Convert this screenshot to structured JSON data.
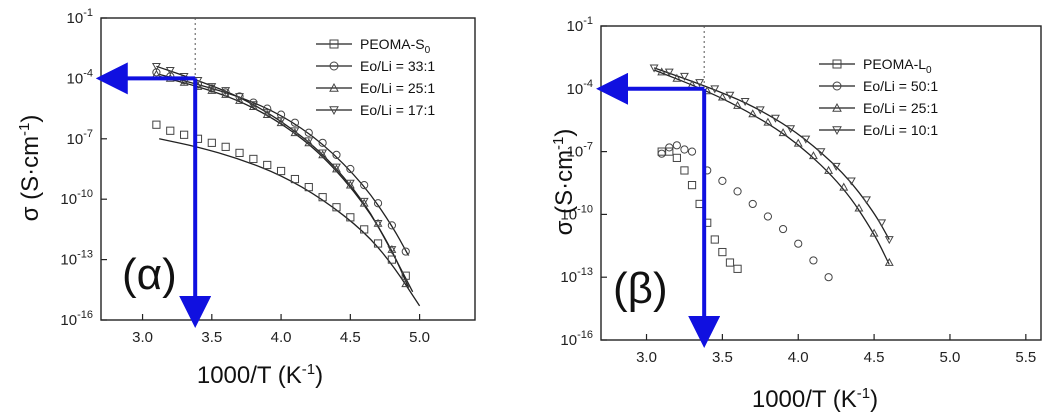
{
  "chart_data": [
    {
      "type": "scatter",
      "panel_label": "(α)",
      "xlabel": "1000/T (K",
      "xlabel_sup": "-1",
      "xlabel_tail": ")",
      "ylabel": "σ (S·cm",
      "ylabel_sup": "-1",
      "ylabel_tail": ")",
      "xlim": [
        2.7,
        5.4
      ],
      "ylim_exp": [
        -16,
        -1
      ],
      "y_scale": "log",
      "x_ticks": [
        3.0,
        3.5,
        4.0,
        4.5,
        5.0
      ],
      "x_tick_labels": [
        "3.0",
        "3.5",
        "4.0",
        "4.5",
        "5.0"
      ],
      "y_ticks_exp": [
        -16,
        -13,
        -10,
        -7,
        -4,
        -1
      ],
      "legend_position": "top-right",
      "annotations": {
        "dotted_x": 3.38,
        "arrow_vertical": {
          "x": 3.38,
          "from_exp": -4,
          "to_exp": -16
        },
        "arrow_horizontal": {
          "y_exp": -4,
          "from_x": 3.38,
          "to_x": 2.72
        }
      },
      "series": [
        {
          "name": "PEOMA-S",
          "name_sub": "0",
          "marker": "square",
          "x": [
            3.1,
            3.2,
            3.3,
            3.4,
            3.5,
            3.6,
            3.7,
            3.8,
            3.9,
            4.0,
            4.1,
            4.2,
            4.3,
            4.4,
            4.5,
            4.6,
            4.7,
            4.8,
            4.9
          ],
          "y_exp": [
            -6.3,
            -6.6,
            -6.8,
            -7.0,
            -7.2,
            -7.4,
            -7.7,
            -8.0,
            -8.3,
            -8.6,
            -9.0,
            -9.4,
            -9.9,
            -10.4,
            -10.9,
            -11.5,
            -12.2,
            -13.0,
            -13.8
          ],
          "fit_x": [
            3.12,
            3.4,
            3.7,
            4.0,
            4.3,
            4.6,
            4.8,
            5.0
          ],
          "fit_y_exp": [
            -7.0,
            -7.4,
            -8.0,
            -8.8,
            -10.0,
            -11.6,
            -13.2,
            -15.3
          ]
        },
        {
          "name": "Eo/Li = 33:1",
          "marker": "circle",
          "x": [
            3.1,
            3.2,
            3.3,
            3.4,
            3.5,
            3.6,
            3.7,
            3.8,
            3.9,
            4.0,
            4.1,
            4.2,
            4.3,
            4.4,
            4.5,
            4.6,
            4.7,
            4.8,
            4.9
          ],
          "y_exp": [
            -3.7,
            -3.9,
            -4.1,
            -4.3,
            -4.5,
            -4.7,
            -4.9,
            -5.2,
            -5.5,
            -5.8,
            -6.2,
            -6.7,
            -7.2,
            -7.8,
            -8.5,
            -9.3,
            -10.2,
            -11.3,
            -12.6
          ],
          "fit_x": [
            3.12,
            3.4,
            3.7,
            4.0,
            4.3,
            4.6,
            4.8,
            4.92
          ],
          "fit_y_exp": [
            -3.8,
            -4.3,
            -4.9,
            -5.8,
            -7.2,
            -9.3,
            -11.3,
            -12.8
          ]
        },
        {
          "name": "Eo/Li = 25:1",
          "marker": "triangle-up",
          "x": [
            3.1,
            3.2,
            3.3,
            3.4,
            3.5,
            3.6,
            3.7,
            3.8,
            3.9,
            4.0,
            4.1,
            4.2,
            4.3,
            4.4,
            4.5,
            4.6,
            4.7,
            4.8,
            4.9
          ],
          "y_exp": [
            -3.8,
            -4.0,
            -4.2,
            -4.4,
            -4.6,
            -4.8,
            -5.1,
            -5.4,
            -5.8,
            -6.2,
            -6.7,
            -7.2,
            -7.8,
            -8.5,
            -9.3,
            -10.2,
            -11.2,
            -12.5,
            -14.2
          ],
          "fit_x": [
            3.12,
            3.4,
            3.7,
            4.0,
            4.3,
            4.6,
            4.8,
            4.92
          ],
          "fit_y_exp": [
            -3.9,
            -4.4,
            -5.1,
            -6.2,
            -7.8,
            -10.2,
            -12.5,
            -14.4
          ]
        },
        {
          "name": "Eo/Li = 17:1",
          "marker": "triangle-down",
          "x": [
            3.1,
            3.2,
            3.3,
            3.4,
            3.5,
            3.6,
            3.7,
            3.8,
            3.9,
            4.0,
            4.1,
            4.2,
            4.3,
            4.4,
            4.5,
            4.6,
            4.7,
            4.8
          ],
          "y_exp": [
            -3.4,
            -3.6,
            -3.9,
            -4.1,
            -4.4,
            -4.6,
            -4.9,
            -5.3,
            -5.7,
            -6.1,
            -6.6,
            -7.1,
            -7.7,
            -8.4,
            -9.2,
            -10.1,
            -11.2,
            -12.5
          ],
          "fit_x": [
            3.1,
            3.4,
            3.7,
            4.0,
            4.3,
            4.6,
            4.8,
            4.95
          ],
          "fit_y_exp": [
            -3.4,
            -4.1,
            -4.9,
            -6.1,
            -7.7,
            -10.1,
            -12.6,
            -14.6
          ]
        }
      ]
    },
    {
      "type": "scatter",
      "panel_label": "(β)",
      "xlabel": "1000/T (K",
      "xlabel_sup": "-1",
      "xlabel_tail": ")",
      "ylabel": "σ (S·cm",
      "ylabel_sup": "-1",
      "ylabel_tail": ")",
      "xlim": [
        2.7,
        5.6
      ],
      "ylim_exp": [
        -16,
        -1
      ],
      "y_scale": "log",
      "x_ticks": [
        3.0,
        3.5,
        4.0,
        4.5,
        5.0,
        5.5
      ],
      "x_tick_labels": [
        "3.0",
        "3.5",
        "4.0",
        "4.5",
        "5.0",
        "5.5"
      ],
      "y_ticks_exp": [
        -16,
        -13,
        -10,
        -7,
        -4,
        -1
      ],
      "legend_position": "top-right",
      "annotations": {
        "dotted_x": 3.38,
        "arrow_vertical": {
          "x": 3.38,
          "from_exp": -4,
          "to_exp": -16
        },
        "arrow_horizontal": {
          "y_exp": -4,
          "from_x": 3.38,
          "to_x": 2.72
        }
      },
      "series": [
        {
          "name": "PEOMA-L",
          "name_sub": "0",
          "marker": "square",
          "x": [
            3.1,
            3.15,
            3.2,
            3.25,
            3.3,
            3.35,
            3.4,
            3.45,
            3.5,
            3.55,
            3.6
          ],
          "y_exp": [
            -7.0,
            -7.0,
            -7.3,
            -7.9,
            -8.6,
            -9.5,
            -10.4,
            -11.2,
            -11.8,
            -12.3,
            -12.6
          ],
          "fit_x": [],
          "fit_y_exp": []
        },
        {
          "name": "Eo/Li = 50:1",
          "marker": "circle",
          "x": [
            3.1,
            3.15,
            3.2,
            3.25,
            3.3,
            3.4,
            3.5,
            3.6,
            3.7,
            3.8,
            3.9,
            4.0,
            4.1,
            4.2
          ],
          "y_exp": [
            -7.1,
            -6.8,
            -6.7,
            -6.9,
            -7.0,
            -7.9,
            -8.4,
            -8.9,
            -9.5,
            -10.1,
            -10.7,
            -11.4,
            -12.2,
            -13.0
          ],
          "fit_x": [],
          "fit_y_exp": []
        },
        {
          "name": "Eo/Li = 25:1",
          "marker": "triangle-up",
          "x": [
            3.1,
            3.2,
            3.3,
            3.4,
            3.5,
            3.6,
            3.7,
            3.8,
            3.9,
            4.0,
            4.1,
            4.2,
            4.3,
            4.4,
            4.5,
            4.6
          ],
          "y_exp": [
            -3.2,
            -3.5,
            -3.8,
            -4.1,
            -4.4,
            -4.8,
            -5.2,
            -5.6,
            -6.1,
            -6.6,
            -7.2,
            -7.9,
            -8.7,
            -9.7,
            -10.9,
            -12.3
          ],
          "fit_x": [
            3.05,
            3.4,
            3.7,
            4.0,
            4.3,
            4.5,
            4.6
          ],
          "fit_y_exp": [
            -3.1,
            -4.1,
            -5.2,
            -6.6,
            -8.7,
            -10.9,
            -12.4
          ]
        },
        {
          "name": "Eo/Li = 10:1",
          "marker": "triangle-down",
          "x": [
            3.05,
            3.15,
            3.25,
            3.35,
            3.45,
            3.55,
            3.65,
            3.75,
            3.85,
            3.95,
            4.05,
            4.15,
            4.25,
            4.35,
            4.45,
            4.55,
            4.6
          ],
          "y_exp": [
            -3.0,
            -3.2,
            -3.4,
            -3.7,
            -4.0,
            -4.3,
            -4.6,
            -5.0,
            -5.4,
            -5.9,
            -6.4,
            -7.0,
            -7.7,
            -8.4,
            -9.3,
            -10.4,
            -11.2
          ],
          "fit_x": [
            3.05,
            3.4,
            3.7,
            4.0,
            4.3,
            4.5,
            4.6
          ],
          "fit_y_exp": [
            -3.0,
            -3.9,
            -4.8,
            -6.1,
            -8.0,
            -9.9,
            -11.2
          ]
        }
      ]
    }
  ]
}
